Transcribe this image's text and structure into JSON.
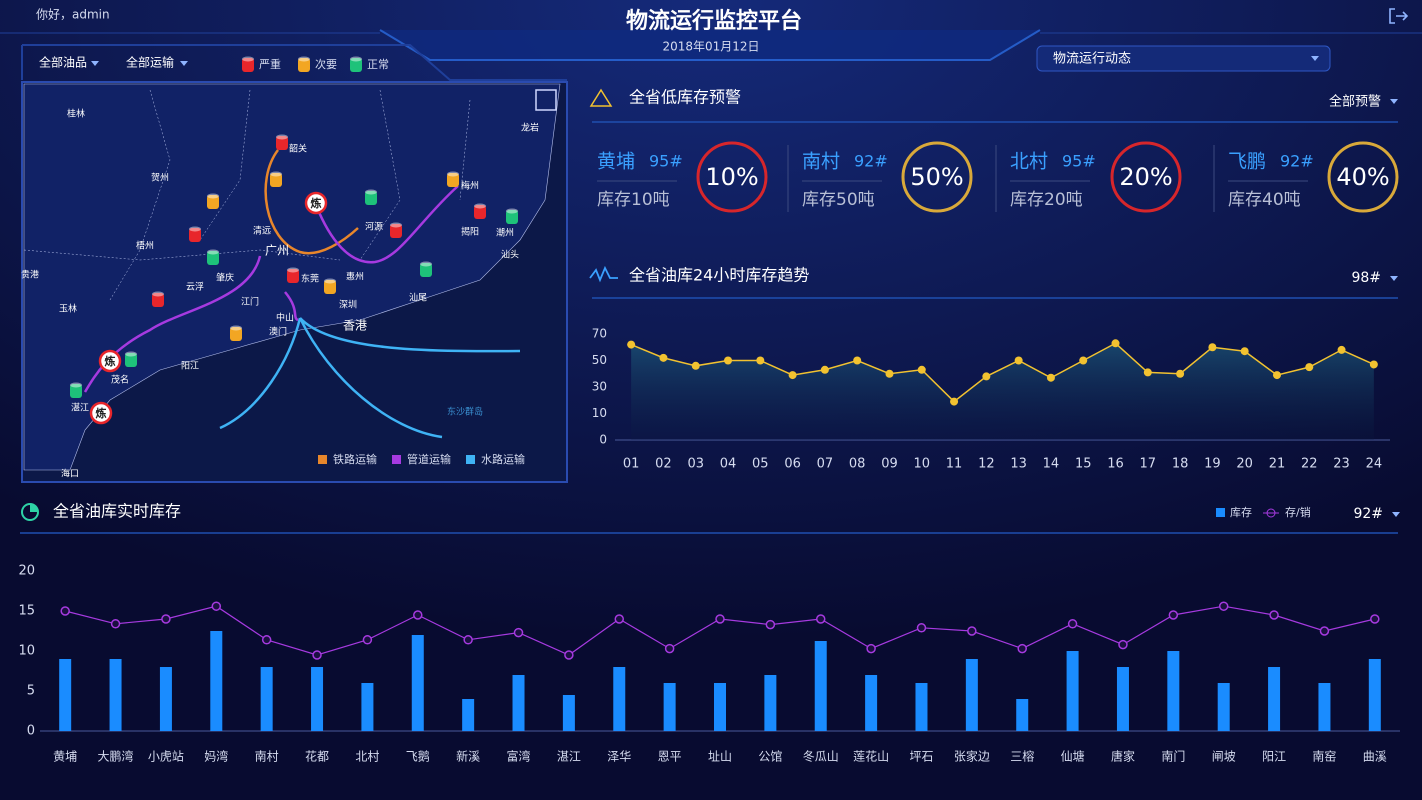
{
  "header": {
    "greeting": "你好，admin",
    "title": "物流运行监控平台",
    "date": "2018年01月12日",
    "view_select": "物流运行动态"
  },
  "map": {
    "filters": [
      "全部油品",
      "全部运输"
    ],
    "severity_legend": [
      {
        "name": "严重",
        "color": "#e8262b"
      },
      {
        "name": "次要",
        "color": "#f2a623"
      },
      {
        "name": "正常",
        "color": "#1ec27a"
      }
    ],
    "labels": [
      "桂林",
      "贺州",
      "梧州",
      "贵港",
      "玉林",
      "韶关",
      "清远",
      "广州",
      "河源",
      "梅州",
      "龙岩",
      "揭阳",
      "潮州",
      "汕头",
      "肇庆",
      "云浮",
      "东莞",
      "惠州",
      "汕尾",
      "江门",
      "深圳",
      "中山",
      "澳门",
      "香港",
      "阳江",
      "茂名",
      "湛江",
      "海口",
      "东沙群岛"
    ],
    "refinery_label": "炼",
    "transport_legend": [
      {
        "name": "铁路运输",
        "color": "#e8862b"
      },
      {
        "name": "管道运输",
        "color": "#a63ae0"
      },
      {
        "name": "水路运输",
        "color": "#3fb3f5"
      }
    ]
  },
  "warnings": {
    "title": "全省低库存预警",
    "filter": "全部预警",
    "items": [
      {
        "name": "黄埔",
        "grade": "95#",
        "stock": "库存10吨",
        "percent": "10%",
        "color": "#d7262b"
      },
      {
        "name": "南村",
        "grade": "92#",
        "stock": "库存50吨",
        "percent": "50%",
        "color": "#d9a93a"
      },
      {
        "name": "北村",
        "grade": "95#",
        "stock": "库存20吨",
        "percent": "20%",
        "color": "#d7262b"
      },
      {
        "name": "飞鹏",
        "grade": "92#",
        "stock": "库存40吨",
        "percent": "40%",
        "color": "#d9a93a"
      }
    ]
  },
  "chart_data": [
    {
      "type": "line",
      "title": "全省油库24小时库存趋势",
      "selector": "98#",
      "categories": [
        "01",
        "02",
        "03",
        "04",
        "05",
        "06",
        "07",
        "08",
        "09",
        "10",
        "11",
        "12",
        "13",
        "14",
        "15",
        "16",
        "17",
        "18",
        "19",
        "20",
        "21",
        "22",
        "23",
        "24"
      ],
      "series": [
        {
          "name": "库存",
          "color": "#f2c230",
          "values": [
            62,
            52,
            46,
            50,
            50,
            39,
            43,
            50,
            40,
            43,
            19,
            38,
            50,
            37,
            50,
            63,
            41,
            40,
            60,
            57,
            39,
            45,
            58,
            47
          ]
        }
      ],
      "ylim": [
        0,
        70
      ],
      "yticks": [
        0,
        10,
        30,
        50,
        70
      ],
      "grid": false
    },
    {
      "type": "bar",
      "title": "全省油库实时库存",
      "selector": "92#",
      "categories": [
        "黄埔",
        "大鹏湾",
        "小虎站",
        "妈湾",
        "南村",
        "花都",
        "北村",
        "飞鹅",
        "新溪",
        "富湾",
        "湛江",
        "泽华",
        "恩平",
        "址山",
        "公馆",
        "冬瓜山",
        "莲花山",
        "坪石",
        "张家边",
        "三榕",
        "仙塘",
        "唐家",
        "南门",
        "闸坡",
        "阳江",
        "南窑",
        "曲溪"
      ],
      "series": [
        {
          "name": "库存",
          "type": "bar",
          "color": "#1a8cff",
          "values": [
            9,
            9,
            8,
            12.5,
            8,
            8,
            6,
            12,
            4,
            7,
            4.5,
            8,
            6,
            6,
            7,
            11.25,
            7,
            6,
            9,
            4,
            10,
            8,
            10,
            6,
            8,
            6,
            9
          ]
        },
        {
          "name": "存/销",
          "type": "line",
          "color": "#a63ae0",
          "values": [
            15,
            13.4,
            14,
            15.6,
            11.4,
            9.5,
            11.4,
            14.5,
            11.4,
            12.3,
            9.5,
            14,
            10.3,
            14,
            13.3,
            14,
            10.3,
            12.9,
            12.5,
            10.3,
            13.4,
            10.8,
            14.5,
            15.6,
            14.5,
            12.5,
            14
          ]
        }
      ],
      "ylim": [
        0,
        20
      ],
      "yticks": [
        0,
        5,
        10,
        15,
        20
      ],
      "grid": false
    }
  ]
}
